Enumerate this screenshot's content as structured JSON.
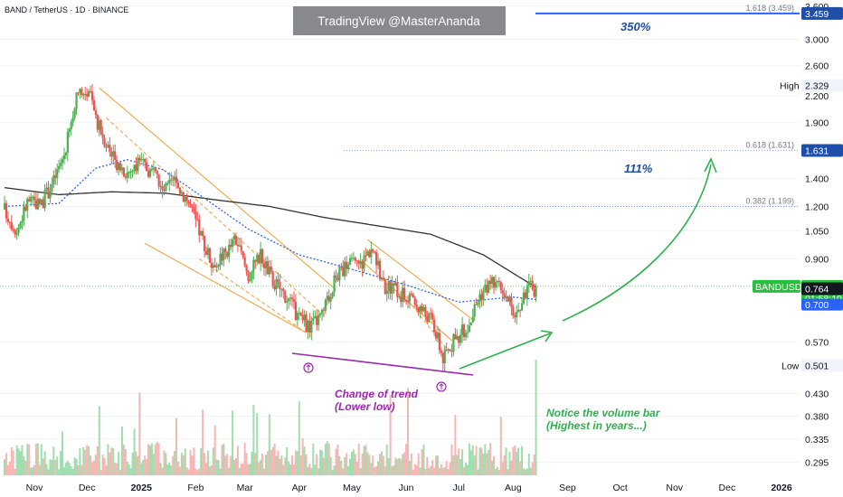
{
  "header": {
    "pair_title": "BAND / TetherUS · 1D · BINANCE",
    "watermark": "TradingView @MasterAnanda"
  },
  "colors": {
    "up": "#26a69a",
    "up_bright": "#4caf50",
    "down": "#ef5350",
    "ma_blue": "#2962ff",
    "ma_black": "#333333",
    "channel": "#f7a440",
    "purple": "#9c27b0",
    "green_arrow": "#2bb24c",
    "fib_line": "#2962ff"
  },
  "chart_data": {
    "type": "candlestick",
    "symbol": "BANDUSDT",
    "y_scale": "log",
    "ylim": [
      0.28,
      3.65
    ],
    "y_ticks": [
      "3.600",
      "3.000",
      "2.600",
      "2.200",
      "1.900",
      "1.400",
      "1.200",
      "1.050",
      "0.900",
      "0.570",
      "0.430",
      "0.380",
      "0.335",
      "0.295"
    ],
    "x_ticks": [
      "Nov",
      "Dec",
      "2025",
      "Feb",
      "Mar",
      "Apr",
      "May",
      "Jun",
      "Jul",
      "Aug",
      "Sep",
      "Oct",
      "Nov",
      "Dec",
      "2026"
    ],
    "price_path": [
      [
        "2024-10-15",
        1.18
      ],
      [
        "2024-10-22",
        1.05
      ],
      [
        "2024-10-28",
        1.23
      ],
      [
        "2024-11-05",
        1.22
      ],
      [
        "2024-11-12",
        1.38
      ],
      [
        "2024-11-18",
        1.6
      ],
      [
        "2024-11-25",
        2.15
      ],
      [
        "2024-12-02",
        2.3
      ],
      [
        "2024-12-06",
        1.95
      ],
      [
        "2024-12-10",
        1.78
      ],
      [
        "2024-12-16",
        1.56
      ],
      [
        "2024-12-24",
        1.45
      ],
      [
        "2025-01-01",
        1.52
      ],
      [
        "2025-01-07",
        1.45
      ],
      [
        "2025-01-13",
        1.3
      ],
      [
        "2025-01-20",
        1.38
      ],
      [
        "2025-01-27",
        1.25
      ],
      [
        "2025-02-03",
        1.05
      ],
      [
        "2025-02-10",
        0.88
      ],
      [
        "2025-02-17",
        0.92
      ],
      [
        "2025-02-24",
        1.0
      ],
      [
        "2025-03-03",
        0.82
      ],
      [
        "2025-03-10",
        0.92
      ],
      [
        "2025-03-17",
        0.8
      ],
      [
        "2025-03-24",
        0.74
      ],
      [
        "2025-03-31",
        0.66
      ],
      [
        "2025-04-07",
        0.62
      ],
      [
        "2025-04-14",
        0.66
      ],
      [
        "2025-04-21",
        0.8
      ],
      [
        "2025-04-28",
        0.88
      ],
      [
        "2025-05-05",
        0.86
      ],
      [
        "2025-05-12",
        0.96
      ],
      [
        "2025-05-19",
        0.78
      ],
      [
        "2025-05-26",
        0.76
      ],
      [
        "2025-06-02",
        0.72
      ],
      [
        "2025-06-09",
        0.69
      ],
      [
        "2025-06-16",
        0.64
      ],
      [
        "2025-06-22",
        0.52
      ],
      [
        "2025-06-29",
        0.58
      ],
      [
        "2025-07-06",
        0.62
      ],
      [
        "2025-07-13",
        0.74
      ],
      [
        "2025-07-20",
        0.8
      ],
      [
        "2025-07-27",
        0.73
      ],
      [
        "2025-08-03",
        0.66
      ],
      [
        "2025-08-09",
        0.77
      ],
      [
        "2025-08-14",
        0.764
      ]
    ],
    "ma_blue": [
      [
        "2024-10-15",
        1.2
      ],
      [
        "2024-11-15",
        1.22
      ],
      [
        "2024-12-06",
        1.48
      ],
      [
        "2024-12-24",
        1.55
      ],
      [
        "2025-01-13",
        1.47
      ],
      [
        "2025-02-03",
        1.28
      ],
      [
        "2025-03-03",
        1.06
      ],
      [
        "2025-04-01",
        0.92
      ],
      [
        "2025-05-01",
        0.85
      ],
      [
        "2025-06-01",
        0.78
      ],
      [
        "2025-07-01",
        0.71
      ],
      [
        "2025-08-01",
        0.73
      ],
      [
        "2025-08-14",
        0.72
      ]
    ],
    "ma_black": [
      [
        "2024-10-15",
        1.33
      ],
      [
        "2024-11-15",
        1.28
      ],
      [
        "2024-12-15",
        1.3
      ],
      [
        "2025-01-15",
        1.29
      ],
      [
        "2025-02-15",
        1.24
      ],
      [
        "2025-03-15",
        1.2
      ],
      [
        "2025-04-15",
        1.13
      ],
      [
        "2025-05-15",
        1.08
      ],
      [
        "2025-06-15",
        1.03
      ],
      [
        "2025-07-15",
        0.92
      ],
      [
        "2025-08-14",
        0.77
      ]
    ],
    "fib_levels": [
      {
        "label": "1.618 (3.459)",
        "price": 3.459
      },
      {
        "label": "0.618 (1.631)",
        "price": 1.631
      },
      {
        "label": "0.382 (1.199)",
        "price": 1.199
      }
    ],
    "high_value": 2.329,
    "low_value": 0.501,
    "current_price": 0.774,
    "countdown": "01:58:19",
    "label_764": 0.764,
    "label_700": 0.7,
    "target_3459": 3.459,
    "target_1631": 1.631,
    "annotations": {
      "pct_350": "350%",
      "pct_111": "111%",
      "trend_line1": "Change of trend",
      "trend_line2": "(Lower low)",
      "volume_line1": "Notice the volume bar",
      "volume_line2": "(Highest in years...)"
    }
  },
  "price_labels": {
    "high_tag": "High",
    "high_value": "2.329",
    "low_tag": "Low",
    "low_value": "0.501",
    "symbol_tag": "BANDUSDT",
    "current": "0.774",
    "countdown": "01:58:19",
    "v764": "0.764",
    "v700": "0.700",
    "v3459": "3.459",
    "v1631": "1.631"
  }
}
